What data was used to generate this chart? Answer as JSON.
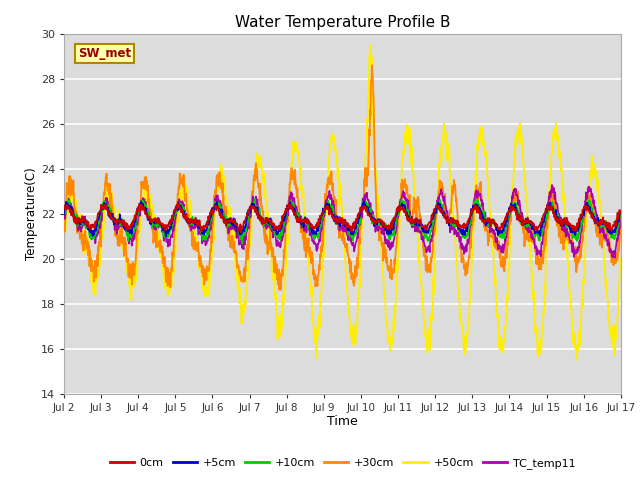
{
  "title": "Water Temperature Profile B",
  "xlabel": "Time",
  "ylabel": "Temperature(C)",
  "ylim": [
    14,
    30
  ],
  "xlim": [
    0,
    15
  ],
  "xtick_labels": [
    "Jul 2",
    "Jul 3",
    "Jul 4",
    "Jul 5",
    "Jul 6",
    "Jul 7",
    "Jul 8",
    "Jul 9",
    "Jul 10",
    "Jul 11",
    "Jul 12",
    "Jul 13",
    "Jul 14",
    "Jul 15",
    "Jul 16",
    "Jul 17"
  ],
  "ytick_values": [
    14,
    16,
    18,
    20,
    22,
    24,
    26,
    28,
    30
  ],
  "series_colors": {
    "0cm": "#cc0000",
    "+5cm": "#0000cc",
    "+10cm": "#00cc00",
    "+30cm": "#ff8800",
    "+50cm": "#ffee00",
    "TC_temp11": "#aa00aa"
  },
  "sw_met_label": "SW_met",
  "sw_met_color": "#990000",
  "sw_met_bg": "#ffffaa",
  "sw_met_edge": "#aa8800",
  "background_color": "#e8e8e8",
  "plot_bg": "#dcdcdc",
  "figsize": [
    6.4,
    4.8
  ],
  "dpi": 100
}
